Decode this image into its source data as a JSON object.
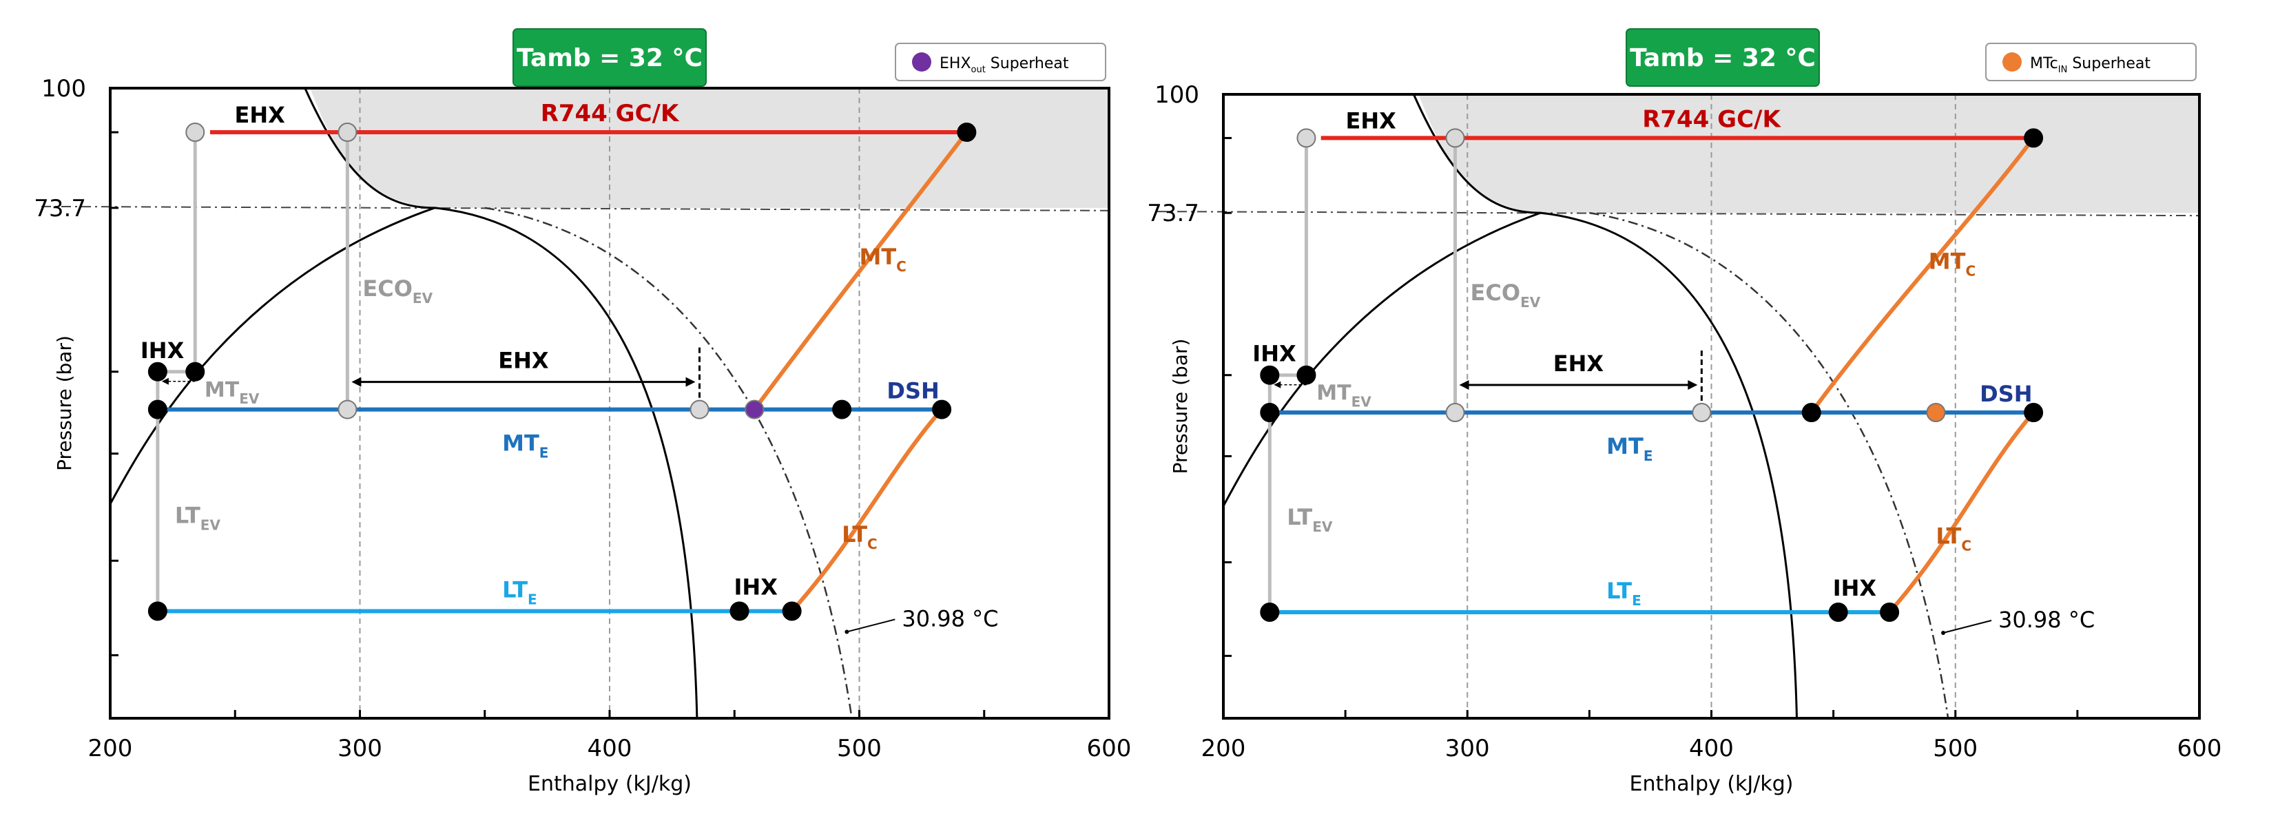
{
  "chart_data": [
    {
      "type": "line",
      "title": "Tamb = 32 °C",
      "legend": "EHX",
      "legend_sub": "out",
      "legend_tail": " Superheat",
      "legend_color": "#7030a0",
      "legend_position": "top-right",
      "xlabel": "Enthalpy (kJ/kg)",
      "ylabel": "Pressure (bar)",
      "xlim": [
        200,
        600
      ],
      "xticks": [
        "200",
        "300",
        "400",
        "500",
        "600"
      ],
      "ytick_labels": [
        "100",
        "73.7"
      ],
      "isotherm_label": "30.98 °C",
      "labels": {
        "gck": "R744 GC/K",
        "ehx_top": "EHX",
        "eco": "ECO",
        "eco_sub": "EV",
        "ihx_left": "IHX",
        "mtev": "MT",
        "mtev_sub": "EV",
        "ltev": "LT",
        "ltev_sub": "EV",
        "ehx_mid": "EHX",
        "mte": "MT",
        "mte_sub": "E",
        "lte": "LT",
        "lte_sub": "E",
        "dsh": "DSH",
        "mtc": "MT",
        "mtc_sub": "C",
        "ltc": "LT",
        "ltc_sub": "C",
        "ihx_low": "IHX"
      },
      "state_points": {
        "ehx_bar_end_x": 436,
        "mt_comp_in_x": 458,
        "superheat_marker_x": 458,
        "dsh_point_x": 493,
        "mt_discharge_x": 543,
        "lt_comp_in_x": 473,
        "lt_ihx_x": 452,
        "lt_discharge_x": 533
      }
    },
    {
      "type": "line",
      "title": "Tamb = 32 °C",
      "legend": "MTc",
      "legend_sub": "IN",
      "legend_tail": " Superheat",
      "legend_color": "#ed7d31",
      "legend_position": "top-right",
      "xlabel": "Enthalpy (kJ/kg)",
      "ylabel": "Pressure (bar)",
      "xlim": [
        200,
        600
      ],
      "xticks": [
        "200",
        "300",
        "400",
        "500",
        "600"
      ],
      "ytick_labels": [
        "100",
        "73.7"
      ],
      "isotherm_label": "30.98 °C",
      "labels": {
        "gck": "R744 GC/K",
        "ehx_top": "EHX",
        "eco": "ECO",
        "eco_sub": "EV",
        "ihx_left": "IHX",
        "mtev": "MT",
        "mtev_sub": "EV",
        "ltev": "LT",
        "ltev_sub": "EV",
        "ehx_mid": "EHX",
        "mte": "MT",
        "mte_sub": "E",
        "lte": "LT",
        "lte_sub": "E",
        "dsh": "DSH",
        "mtc": "MT",
        "mtc_sub": "C",
        "ltc": "LT",
        "ltc_sub": "C",
        "ihx_low": "IHX"
      },
      "state_points": {
        "ehx_bar_end_x": 396,
        "mt_comp_in_x": 441,
        "superheat_marker_x": 492,
        "dsh_point_x": 492,
        "mt_discharge_x": 532,
        "lt_comp_in_x": 473,
        "lt_ihx_x": 452,
        "lt_discharge_x": 532
      }
    }
  ]
}
